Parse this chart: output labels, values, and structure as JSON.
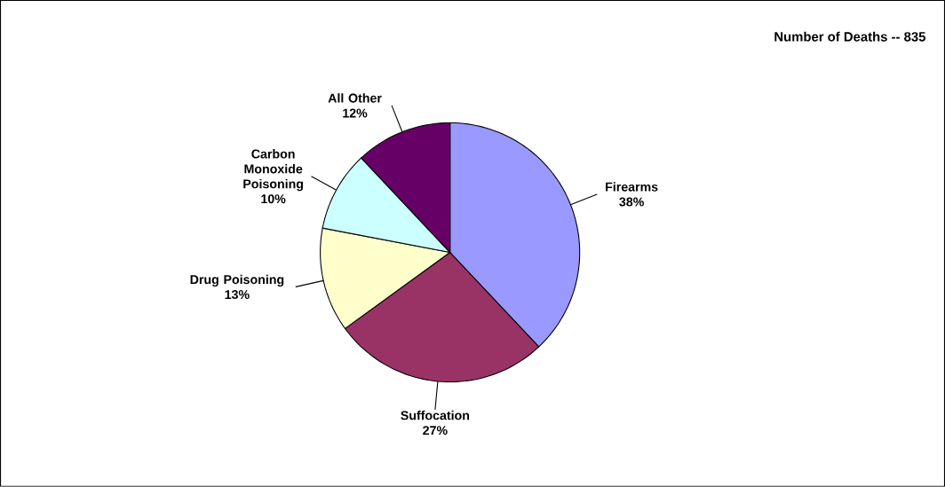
{
  "chart_data": {
    "type": "pie",
    "title": "Number of Deaths -- 835",
    "categories": [
      "Firearms",
      "Suffocation",
      "Drug Poisoning",
      "Carbon Monoxide Poisoning",
      "All Other"
    ],
    "values": [
      38,
      27,
      13,
      10,
      12
    ],
    "value_labels": [
      "38%",
      "27%",
      "13%",
      "10%",
      "12%"
    ],
    "colors": [
      "#9999ff",
      "#993366",
      "#ffffcc",
      "#ccffff",
      "#660066"
    ]
  }
}
